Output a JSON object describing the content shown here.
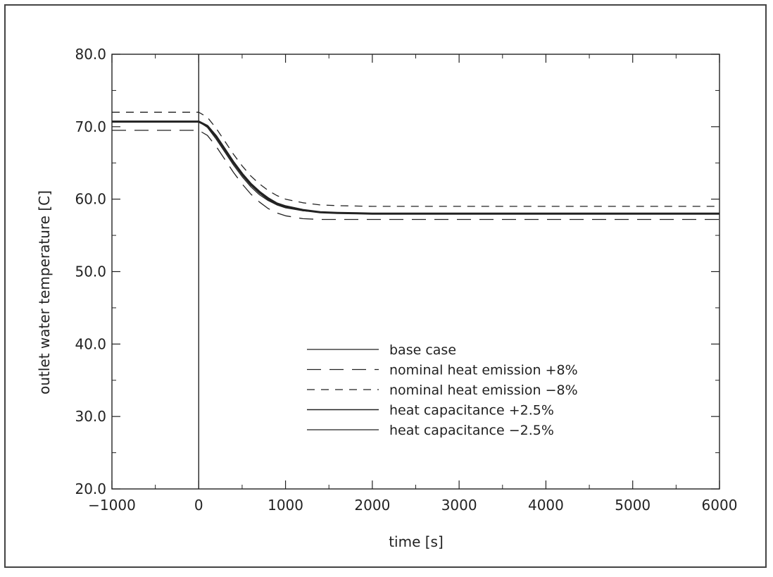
{
  "chart_data": {
    "type": "line",
    "xlabel": "time [s]",
    "ylabel": "outlet water temperature [C]",
    "xlim": [
      -1000,
      6000
    ],
    "ylim": [
      20,
      80
    ],
    "xticks": [
      -1000,
      0,
      1000,
      2000,
      3000,
      4000,
      5000,
      6000
    ],
    "xtick_labels": [
      "−1000",
      "0",
      "1000",
      "2000",
      "3000",
      "4000",
      "5000",
      "6000"
    ],
    "yticks": [
      20,
      30,
      40,
      50,
      60,
      70,
      80
    ],
    "ytick_labels": [
      "20.0",
      "30.0",
      "40.0",
      "50.0",
      "60.0",
      "70.0",
      "80.0"
    ],
    "vertical_line_x": 0,
    "legend_position": "lower-center",
    "grid": false,
    "series": [
      {
        "name": "base case",
        "style": "solid-thin",
        "x": [
          -1000,
          0,
          100,
          200,
          300,
          400,
          500,
          600,
          700,
          800,
          900,
          1000,
          1200,
          1400,
          1600,
          2000,
          3000,
          4000,
          5000,
          6000
        ],
        "y": [
          70.7,
          70.7,
          70.0,
          68.5,
          66.7,
          64.9,
          63.3,
          61.9,
          60.8,
          59.9,
          59.3,
          58.9,
          58.4,
          58.2,
          58.1,
          58.0,
          58.0,
          58.0,
          58.0,
          58.0
        ]
      },
      {
        "name": "nominal heat emission +8%",
        "style": "long-dash",
        "x": [
          -1000,
          0,
          100,
          200,
          300,
          400,
          500,
          600,
          700,
          800,
          900,
          1000,
          1200,
          1400,
          1600,
          2000,
          3000,
          4000,
          5000,
          6000
        ],
        "y": [
          69.5,
          69.5,
          68.8,
          67.3,
          65.5,
          63.7,
          62.1,
          60.7,
          59.6,
          58.7,
          58.1,
          57.7,
          57.3,
          57.2,
          57.2,
          57.2,
          57.2,
          57.2,
          57.2,
          57.2
        ]
      },
      {
        "name": "nominal heat emission −8%",
        "style": "short-dash",
        "x": [
          -1000,
          0,
          100,
          200,
          300,
          400,
          500,
          600,
          700,
          800,
          900,
          1000,
          1200,
          1400,
          1600,
          2000,
          3000,
          4000,
          5000,
          6000
        ],
        "y": [
          72.0,
          72.0,
          71.3,
          69.8,
          68.0,
          66.2,
          64.6,
          63.2,
          62.1,
          61.2,
          60.5,
          60.0,
          59.5,
          59.2,
          59.1,
          59.0,
          59.0,
          59.0,
          59.0,
          59.0
        ]
      },
      {
        "name": "heat capacitance +2.5%",
        "style": "solid-thick",
        "x": [
          -1000,
          0,
          100,
          200,
          300,
          400,
          500,
          600,
          700,
          800,
          900,
          1000,
          1200,
          1400,
          1600,
          2000,
          3000,
          4000,
          5000,
          6000
        ],
        "y": [
          70.7,
          70.7,
          70.1,
          68.7,
          66.9,
          65.1,
          63.5,
          62.1,
          61.0,
          60.1,
          59.4,
          59.0,
          58.5,
          58.2,
          58.1,
          58.0,
          58.0,
          58.0,
          58.0,
          58.0
        ]
      },
      {
        "name": "heat capacitance −2.5%",
        "style": "solid-thin",
        "x": [
          -1000,
          0,
          100,
          200,
          300,
          400,
          500,
          600,
          700,
          800,
          900,
          1000,
          1200,
          1400,
          1600,
          2000,
          3000,
          4000,
          5000,
          6000
        ],
        "y": [
          70.7,
          70.7,
          69.9,
          68.3,
          66.5,
          64.7,
          63.1,
          61.7,
          60.6,
          59.8,
          59.2,
          58.8,
          58.4,
          58.2,
          58.1,
          58.0,
          58.0,
          58.0,
          58.0,
          58.0
        ]
      }
    ]
  }
}
